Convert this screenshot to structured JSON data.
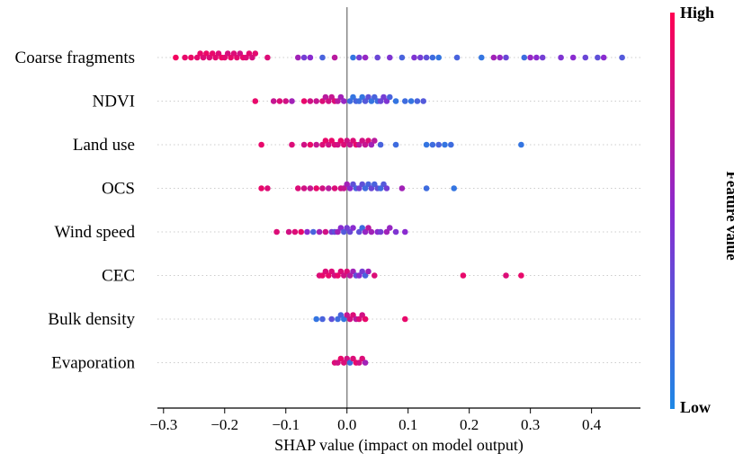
{
  "chart_data": {
    "type": "scatter",
    "subtype": "shap-beeswarm",
    "xlabel": "SHAP value (impact on model output)",
    "xlim": [
      -0.31,
      0.48
    ],
    "xticks": [
      -0.3,
      -0.2,
      -0.1,
      0.0,
      0.1,
      0.2,
      0.3,
      0.4
    ],
    "xtick_labels": [
      "−0.3",
      "−0.2",
      "−0.1",
      "0.0",
      "0.1",
      "0.2",
      "0.3",
      "0.4"
    ],
    "colorbar": {
      "title": "Feature value",
      "high_label": "High",
      "low_label": "Low",
      "high_color": "#ff0052",
      "mid_color": "#8a2bd0",
      "low_color": "#1e88e5"
    },
    "features": [
      {
        "name": "Coarse fragments",
        "points": [
          [
            -0.28,
            0.95
          ],
          [
            -0.265,
            0.9
          ],
          [
            -0.255,
            0.92
          ],
          [
            -0.245,
            0.88
          ],
          [
            -0.24,
            0.9
          ],
          [
            -0.235,
            0.85
          ],
          [
            -0.23,
            0.92
          ],
          [
            -0.225,
            0.85
          ],
          [
            -0.22,
            0.9
          ],
          [
            -0.215,
            0.88
          ],
          [
            -0.21,
            0.85
          ],
          [
            -0.205,
            0.93
          ],
          [
            -0.2,
            0.88
          ],
          [
            -0.195,
            0.82
          ],
          [
            -0.19,
            0.9
          ],
          [
            -0.185,
            0.85
          ],
          [
            -0.18,
            0.88
          ],
          [
            -0.175,
            0.8
          ],
          [
            -0.17,
            0.9
          ],
          [
            -0.165,
            0.85
          ],
          [
            -0.16,
            0.88
          ],
          [
            -0.155,
            0.82
          ],
          [
            -0.15,
            0.88
          ],
          [
            -0.13,
            0.85
          ],
          [
            -0.08,
            0.6
          ],
          [
            -0.07,
            0.4
          ],
          [
            -0.06,
            0.5
          ],
          [
            -0.04,
            0.2
          ],
          [
            -0.02,
            0.7
          ],
          [
            0.01,
            0.1
          ],
          [
            0.02,
            0.4
          ],
          [
            0.03,
            0.55
          ],
          [
            0.05,
            0.35
          ],
          [
            0.07,
            0.45
          ],
          [
            0.09,
            0.2
          ],
          [
            0.11,
            0.45
          ],
          [
            0.12,
            0.4
          ],
          [
            0.13,
            0.3
          ],
          [
            0.14,
            0.15
          ],
          [
            0.15,
            0.1
          ],
          [
            0.18,
            0.2
          ],
          [
            0.22,
            0.1
          ],
          [
            0.24,
            0.6
          ],
          [
            0.25,
            0.55
          ],
          [
            0.26,
            0.35
          ],
          [
            0.29,
            0.15
          ],
          [
            0.3,
            0.55
          ],
          [
            0.31,
            0.5
          ],
          [
            0.32,
            0.4
          ],
          [
            0.35,
            0.45
          ],
          [
            0.37,
            0.5
          ],
          [
            0.39,
            0.35
          ],
          [
            0.41,
            0.3
          ],
          [
            0.42,
            0.5
          ],
          [
            0.45,
            0.25
          ]
        ]
      },
      {
        "name": "NDVI",
        "points": [
          [
            -0.15,
            0.9
          ],
          [
            -0.12,
            0.75
          ],
          [
            -0.11,
            0.85
          ],
          [
            -0.1,
            0.8
          ],
          [
            -0.09,
            0.6
          ],
          [
            -0.07,
            0.9
          ],
          [
            -0.06,
            0.8
          ],
          [
            -0.05,
            0.75
          ],
          [
            -0.04,
            0.85
          ],
          [
            -0.035,
            0.7
          ],
          [
            -0.03,
            0.8
          ],
          [
            -0.025,
            0.75
          ],
          [
            -0.02,
            0.85
          ],
          [
            -0.015,
            0.7
          ],
          [
            -0.01,
            0.6
          ],
          [
            -0.005,
            0.55
          ],
          [
            0.005,
            0.15
          ],
          [
            0.01,
            0.1
          ],
          [
            0.015,
            0.2
          ],
          [
            0.02,
            0.15
          ],
          [
            0.025,
            0.1
          ],
          [
            0.03,
            0.25
          ],
          [
            0.035,
            0.3
          ],
          [
            0.04,
            0.1
          ],
          [
            0.045,
            0.2
          ],
          [
            0.05,
            0.15
          ],
          [
            0.055,
            0.35
          ],
          [
            0.06,
            0.4
          ],
          [
            0.065,
            0.45
          ],
          [
            0.07,
            0.2
          ],
          [
            0.08,
            0.1
          ],
          [
            0.095,
            0.15
          ],
          [
            0.105,
            0.1
          ],
          [
            0.115,
            0.2
          ],
          [
            0.125,
            0.25
          ]
        ]
      },
      {
        "name": "Land use",
        "points": [
          [
            -0.14,
            0.9
          ],
          [
            -0.09,
            0.85
          ],
          [
            -0.07,
            0.8
          ],
          [
            -0.06,
            0.9
          ],
          [
            -0.05,
            0.75
          ],
          [
            -0.04,
            0.85
          ],
          [
            -0.035,
            0.9
          ],
          [
            -0.03,
            0.8
          ],
          [
            -0.025,
            0.9
          ],
          [
            -0.02,
            0.85
          ],
          [
            -0.015,
            0.8
          ],
          [
            -0.01,
            0.9
          ],
          [
            -0.005,
            0.85
          ],
          [
            0.0,
            0.8
          ],
          [
            0.005,
            0.75
          ],
          [
            0.01,
            0.85
          ],
          [
            0.015,
            0.9
          ],
          [
            0.02,
            0.7
          ],
          [
            0.025,
            0.8
          ],
          [
            0.03,
            0.75
          ],
          [
            0.035,
            0.85
          ],
          [
            0.04,
            0.6
          ],
          [
            0.045,
            0.7
          ],
          [
            0.055,
            0.2
          ],
          [
            0.08,
            0.15
          ],
          [
            0.13,
            0.1
          ],
          [
            0.14,
            0.15
          ],
          [
            0.15,
            0.2
          ],
          [
            0.16,
            0.1
          ],
          [
            0.17,
            0.15
          ],
          [
            0.285,
            0.1
          ]
        ]
      },
      {
        "name": "OCS",
        "points": [
          [
            -0.14,
            0.9
          ],
          [
            -0.13,
            0.85
          ],
          [
            -0.08,
            0.85
          ],
          [
            -0.07,
            0.8
          ],
          [
            -0.06,
            0.75
          ],
          [
            -0.05,
            0.9
          ],
          [
            -0.04,
            0.8
          ],
          [
            -0.03,
            0.7
          ],
          [
            -0.02,
            0.85
          ],
          [
            -0.01,
            0.8
          ],
          [
            -0.005,
            0.75
          ],
          [
            0.0,
            0.6
          ],
          [
            0.005,
            0.5
          ],
          [
            0.01,
            0.3
          ],
          [
            0.015,
            0.2
          ],
          [
            0.02,
            0.4
          ],
          [
            0.025,
            0.3
          ],
          [
            0.03,
            0.15
          ],
          [
            0.035,
            0.2
          ],
          [
            0.04,
            0.35
          ],
          [
            0.045,
            0.2
          ],
          [
            0.05,
            0.3
          ],
          [
            0.055,
            0.15
          ],
          [
            0.06,
            0.25
          ],
          [
            0.065,
            0.4
          ],
          [
            0.09,
            0.6
          ],
          [
            0.13,
            0.15
          ],
          [
            0.175,
            0.1
          ]
        ]
      },
      {
        "name": "Wind speed",
        "points": [
          [
            -0.115,
            0.85
          ],
          [
            -0.095,
            0.8
          ],
          [
            -0.085,
            0.85
          ],
          [
            -0.075,
            0.9
          ],
          [
            -0.065,
            0.5
          ],
          [
            -0.055,
            0.2
          ],
          [
            -0.045,
            0.6
          ],
          [
            -0.035,
            0.8
          ],
          [
            -0.025,
            0.4
          ],
          [
            -0.02,
            0.3
          ],
          [
            -0.015,
            0.6
          ],
          [
            -0.01,
            0.5
          ],
          [
            -0.005,
            0.25
          ],
          [
            0.0,
            0.4
          ],
          [
            0.005,
            0.35
          ],
          [
            0.01,
            0.5
          ],
          [
            0.02,
            0.3
          ],
          [
            0.025,
            0.15
          ],
          [
            0.03,
            0.55
          ],
          [
            0.035,
            0.7
          ],
          [
            0.04,
            0.6
          ],
          [
            0.05,
            0.5
          ],
          [
            0.055,
            0.4
          ],
          [
            0.065,
            0.6
          ],
          [
            0.07,
            0.55
          ],
          [
            0.08,
            0.45
          ],
          [
            0.095,
            0.5
          ]
        ]
      },
      {
        "name": "CEC",
        "points": [
          [
            -0.045,
            0.85
          ],
          [
            -0.04,
            0.9
          ],
          [
            -0.035,
            0.85
          ],
          [
            -0.03,
            0.9
          ],
          [
            -0.025,
            0.85
          ],
          [
            -0.02,
            0.8
          ],
          [
            -0.015,
            0.9
          ],
          [
            -0.01,
            0.85
          ],
          [
            -0.005,
            0.8
          ],
          [
            0.0,
            0.85
          ],
          [
            0.005,
            0.7
          ],
          [
            0.01,
            0.6
          ],
          [
            0.015,
            0.3
          ],
          [
            0.02,
            0.5
          ],
          [
            0.025,
            0.4
          ],
          [
            0.03,
            0.2
          ],
          [
            0.035,
            0.6
          ],
          [
            0.045,
            0.85
          ],
          [
            0.19,
            0.9
          ],
          [
            0.26,
            0.85
          ],
          [
            0.285,
            0.9
          ]
        ]
      },
      {
        "name": "Bulk density",
        "points": [
          [
            -0.05,
            0.1
          ],
          [
            -0.04,
            0.2
          ],
          [
            -0.025,
            0.3
          ],
          [
            -0.015,
            0.15
          ],
          [
            -0.01,
            0.2
          ],
          [
            -0.005,
            0.1
          ],
          [
            0.0,
            0.75
          ],
          [
            0.005,
            0.8
          ],
          [
            0.01,
            0.85
          ],
          [
            0.015,
            0.7
          ],
          [
            0.02,
            0.85
          ],
          [
            0.025,
            0.8
          ],
          [
            0.03,
            0.9
          ],
          [
            0.095,
            0.9
          ]
        ]
      },
      {
        "name": "Evaporation",
        "points": [
          [
            -0.02,
            0.85
          ],
          [
            -0.015,
            0.8
          ],
          [
            -0.01,
            0.9
          ],
          [
            -0.005,
            0.85
          ],
          [
            0.0,
            0.8
          ],
          [
            0.005,
            0.15
          ],
          [
            0.01,
            0.85
          ],
          [
            0.015,
            0.9
          ],
          [
            0.02,
            0.8
          ],
          [
            0.025,
            0.85
          ],
          [
            0.03,
            0.6
          ]
        ]
      }
    ]
  }
}
